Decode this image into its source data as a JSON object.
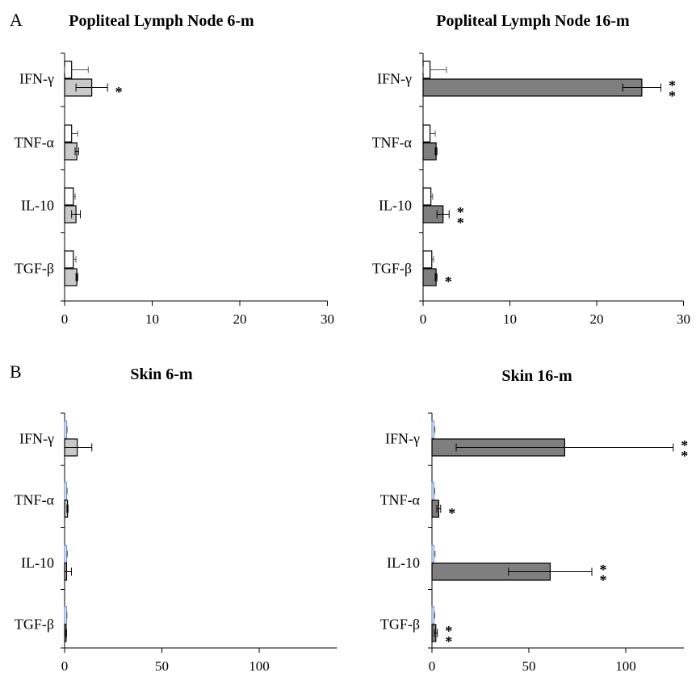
{
  "panel_labels": {
    "a": "A",
    "b": "B"
  },
  "colors": {
    "bar_6m": "#c9c9c9",
    "bar_16m": "#7f7f7f",
    "control_fill": "#ffffff",
    "control_stroke": "#000000",
    "control_stroke_skin": "#6f8fc9"
  },
  "chart_data": [
    {
      "type": "bar",
      "orientation": "horizontal",
      "title": "Popliteal Lymph Node 6-m",
      "categories": [
        "IFN-γ",
        "TNF-α",
        "IL-10",
        "TGF-β"
      ],
      "xlim": [
        0,
        30
      ],
      "xticks": [
        0,
        10,
        20,
        30
      ],
      "series": [
        {
          "values": [
            0.8,
            0.8,
            1.0,
            1.0
          ],
          "errors": [
            1.9,
            0.7,
            0.2,
            0.3
          ]
        },
        {
          "values": [
            3.1,
            1.4,
            1.3,
            1.4
          ],
          "errors": [
            1.8,
            0.2,
            0.5,
            0.1
          ]
        }
      ],
      "significance": [
        "*",
        "",
        "",
        ""
      ]
    },
    {
      "type": "bar",
      "orientation": "horizontal",
      "title": "Popliteal Lymph Node 16-m",
      "categories": [
        "IFN-γ",
        "TNF-α",
        "IL-10",
        "TGF-β"
      ],
      "xlim": [
        0,
        30
      ],
      "xticks": [
        0,
        10,
        20,
        30
      ],
      "series": [
        {
          "values": [
            0.8,
            0.8,
            0.9,
            1.0
          ],
          "errors": [
            1.9,
            0.6,
            0.2,
            0.2
          ]
        },
        {
          "values": [
            25.2,
            1.5,
            2.3,
            1.5
          ],
          "errors": [
            2.2,
            0.1,
            0.7,
            0.1
          ]
        }
      ],
      "significance": [
        "**",
        "",
        "**",
        "*"
      ]
    },
    {
      "type": "bar",
      "orientation": "horizontal",
      "title": "Skin 6-m",
      "categories": [
        "IFN-γ",
        "TNF-α",
        "IL-10",
        "TGF-β"
      ],
      "xlim": [
        0,
        140
      ],
      "xticks": [
        0,
        50,
        100
      ],
      "series": [
        {
          "values": [
            1.0,
            1.0,
            1.0,
            1.0
          ],
          "errors": [
            0.3,
            0.3,
            0.4,
            0.2
          ]
        },
        {
          "values": [
            6.5,
            1.5,
            1.0,
            0.8
          ],
          "errors": [
            7.5,
            0.3,
            2.5,
            0.2
          ]
        }
      ],
      "significance": [
        "",
        "",
        "",
        ""
      ]
    },
    {
      "type": "bar",
      "orientation": "horizontal",
      "title": "Skin 16-m",
      "categories": [
        "IFN-γ",
        "TNF-α",
        "IL-10",
        "TGF-β"
      ],
      "xlim": [
        0,
        130
      ],
      "xticks": [
        0,
        50,
        100
      ],
      "series": [
        {
          "values": [
            1.0,
            1.0,
            1.0,
            1.0
          ],
          "errors": [
            0.5,
            0.4,
            0.6,
            0.4
          ]
        },
        {
          "values": [
            68.5,
            3.5,
            61.0,
            2.0
          ],
          "errors": [
            56.0,
            1.0,
            21.5,
            0.8
          ]
        }
      ],
      "significance": [
        "**",
        "*",
        "**",
        "**"
      ]
    }
  ]
}
